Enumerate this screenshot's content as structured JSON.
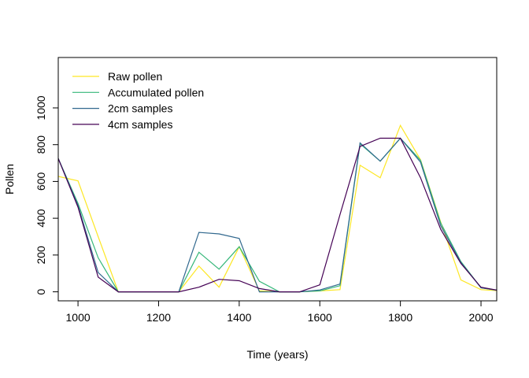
{
  "chart_data": {
    "type": "line",
    "title": "",
    "xlabel": "Time (years)",
    "ylabel": "Pollen",
    "xlim": [
      951,
      2039
    ],
    "ylim": [
      -49,
      1274
    ],
    "xticks": [
      1000,
      1200,
      1400,
      1600,
      1800,
      2000
    ],
    "yticks": [
      0,
      200,
      400,
      600,
      800,
      1000
    ],
    "grid": false,
    "legend_position": "top-left",
    "x": [
      950,
      1000,
      1050,
      1100,
      1150,
      1200,
      1250,
      1300,
      1350,
      1400,
      1450,
      1500,
      1550,
      1600,
      1650,
      1700,
      1750,
      1800,
      1850,
      1900,
      1950,
      2000,
      2050
    ],
    "series": [
      {
        "name": "Raw pollen",
        "color": "#FDE725",
        "values": [
          628,
          603,
          300,
          0,
          0,
          0,
          0,
          140,
          25,
          245,
          5,
          0,
          0,
          5,
          12,
          688,
          620,
          905,
          718,
          380,
          65,
          12,
          5
        ]
      },
      {
        "name": "Accumulated pollen",
        "color": "#35B779",
        "values": [
          730,
          480,
          185,
          0,
          0,
          0,
          0,
          215,
          123,
          245,
          57,
          0,
          0,
          5,
          33,
          805,
          710,
          835,
          715,
          375,
          165,
          22,
          5
        ]
      },
      {
        "name": "2cm samples",
        "color": "#31688E",
        "values": [
          730,
          470,
          105,
          0,
          0,
          0,
          0,
          323,
          315,
          290,
          0,
          0,
          0,
          10,
          42,
          810,
          710,
          835,
          705,
          360,
          160,
          22,
          5
        ]
      },
      {
        "name": "4cm samples",
        "color": "#440154",
        "values": [
          730,
          460,
          80,
          0,
          0,
          0,
          0,
          25,
          68,
          60,
          18,
          0,
          0,
          38,
          420,
          790,
          835,
          835,
          620,
          340,
          155,
          25,
          5
        ]
      }
    ]
  }
}
